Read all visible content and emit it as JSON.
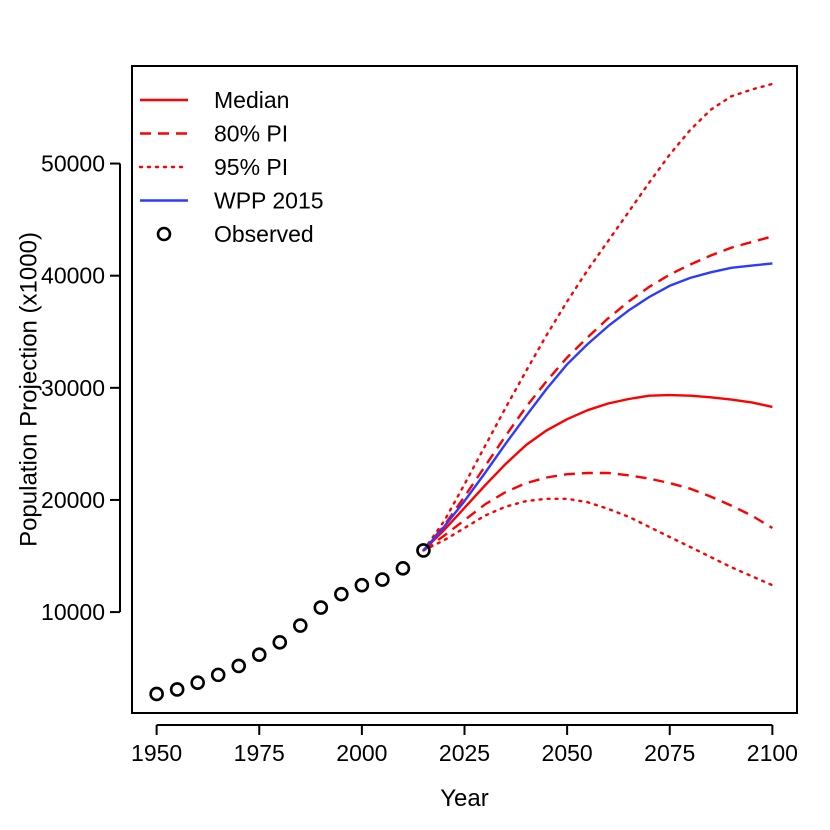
{
  "chart_data": {
    "type": "line",
    "title": "",
    "xlabel": "Year",
    "ylabel": "Population Projection (x1000)",
    "xlim": [
      1944,
      2106
    ],
    "ylim": [
      1000,
      58700
    ],
    "xticks": [
      1950,
      1975,
      2000,
      2025,
      2050,
      2075,
      2100
    ],
    "yticks": [
      10000,
      20000,
      30000,
      40000,
      50000
    ],
    "grid": false,
    "legend_position": "top-left",
    "colors": {
      "red": "#ff0000",
      "blue": "#2b3cff",
      "black": "#000000"
    },
    "series": [
      {
        "name": "Median",
        "style": "solid",
        "color": "#ff0000",
        "x": [
          2015,
          2020,
          2025,
          2030,
          2035,
          2040,
          2045,
          2050,
          2055,
          2060,
          2065,
          2070,
          2075,
          2080,
          2085,
          2090,
          2095,
          2100
        ],
        "y": [
          15500,
          17300,
          19300,
          21300,
          23200,
          24900,
          26200,
          27200,
          28000,
          28600,
          29000,
          29300,
          29350,
          29300,
          29150,
          28950,
          28700,
          28300
        ]
      },
      {
        "name": "80% PI",
        "style": "dashed",
        "color": "#ff0000",
        "x": [
          2015,
          2020,
          2025,
          2030,
          2035,
          2040,
          2045,
          2050,
          2055,
          2060,
          2065,
          2070,
          2075,
          2080,
          2085,
          2090,
          2095,
          2100
        ],
        "y": [
          15500,
          17700,
          20300,
          23000,
          25700,
          28300,
          30600,
          32700,
          34500,
          36200,
          37700,
          39000,
          40100,
          41000,
          41800,
          42500,
          43000,
          43500
        ]
      },
      {
        "name": "80% PI (lower)",
        "style": "dashed",
        "color": "#ff0000",
        "x": [
          2015,
          2020,
          2025,
          2030,
          2035,
          2040,
          2045,
          2050,
          2055,
          2060,
          2065,
          2070,
          2075,
          2080,
          2085,
          2090,
          2095,
          2100
        ],
        "y": [
          15500,
          16800,
          18200,
          19600,
          20700,
          21500,
          22000,
          22300,
          22400,
          22400,
          22200,
          21900,
          21500,
          21000,
          20300,
          19500,
          18600,
          17500
        ]
      },
      {
        "name": "95% PI",
        "style": "dotted",
        "color": "#ff0000",
        "x": [
          2015,
          2020,
          2025,
          2030,
          2035,
          2040,
          2045,
          2050,
          2055,
          2060,
          2065,
          2070,
          2075,
          2080,
          2085,
          2090,
          2095,
          2100
        ],
        "y": [
          15500,
          18100,
          21400,
          24800,
          28200,
          31500,
          34700,
          37700,
          40500,
          43100,
          45700,
          48300,
          50800,
          53000,
          54800,
          56000,
          56600,
          57100
        ]
      },
      {
        "name": "95% PI (lower)",
        "style": "dotted",
        "color": "#ff0000",
        "x": [
          2015,
          2020,
          2025,
          2030,
          2035,
          2040,
          2045,
          2050,
          2055,
          2060,
          2065,
          2070,
          2075,
          2080,
          2085,
          2090,
          2095,
          2100
        ],
        "y": [
          15500,
          16400,
          17500,
          18600,
          19400,
          19900,
          20100,
          20100,
          19800,
          19200,
          18500,
          17600,
          16700,
          15800,
          14900,
          14000,
          13200,
          12400
        ]
      },
      {
        "name": "WPP 2015",
        "style": "solid",
        "color": "#2b3cff",
        "x": [
          2015,
          2020,
          2025,
          2030,
          2035,
          2040,
          2045,
          2050,
          2055,
          2060,
          2065,
          2070,
          2075,
          2080,
          2085,
          2090,
          2095,
          2100
        ],
        "y": [
          15500,
          17600,
          19900,
          22400,
          25000,
          27500,
          29900,
          32100,
          33900,
          35500,
          36900,
          38100,
          39100,
          39800,
          40300,
          40700,
          40900,
          41100
        ]
      },
      {
        "name": "Observed",
        "style": "points",
        "color": "#000000",
        "x": [
          1950,
          1955,
          1960,
          1965,
          1970,
          1975,
          1980,
          1985,
          1990,
          1995,
          2000,
          2005,
          2010,
          2015
        ],
        "y": [
          2700,
          3100,
          3700,
          4400,
          5200,
          6200,
          7300,
          8800,
          10400,
          11600,
          12400,
          12900,
          13900,
          15500
        ]
      }
    ],
    "legend": [
      {
        "label": "Median",
        "style": "solid",
        "color": "#ff0000"
      },
      {
        "label": "80% PI",
        "style": "dashed",
        "color": "#ff0000"
      },
      {
        "label": "95% PI",
        "style": "dotted",
        "color": "#ff0000"
      },
      {
        "label": "WPP 2015",
        "style": "solid",
        "color": "#2b3cff"
      },
      {
        "label": "Observed",
        "style": "points",
        "color": "#000000"
      }
    ]
  }
}
